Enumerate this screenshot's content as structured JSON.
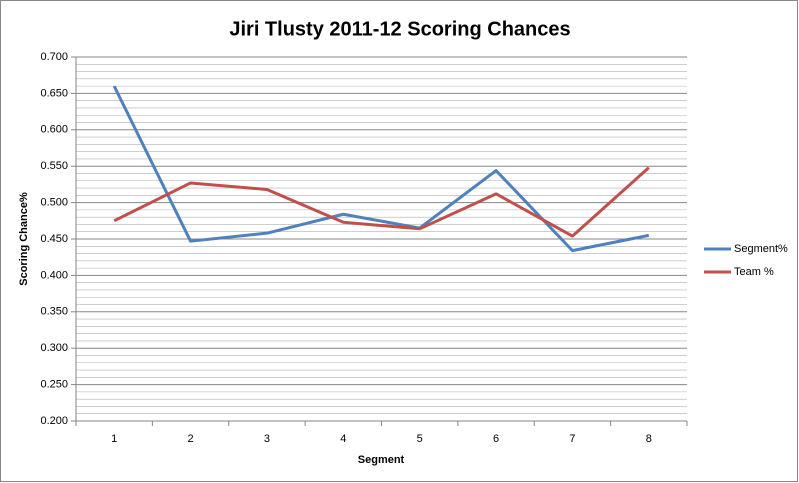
{
  "chart_data": {
    "type": "line",
    "title": "Jiri Tlusty 2011-12 Scoring Chances",
    "x_label": "Segment",
    "y_label": "Scoring  Chance%",
    "categories": [
      "1",
      "2",
      "3",
      "4",
      "5",
      "6",
      "7",
      "8"
    ],
    "series": [
      {
        "name": "Segment%",
        "color": "#4f81bd",
        "values": [
          0.66,
          0.447,
          0.458,
          0.484,
          0.465,
          0.544,
          0.434,
          0.455
        ]
      },
      {
        "name": "Team %",
        "color": "#c0504d",
        "values": [
          0.475,
          0.527,
          0.518,
          0.473,
          0.464,
          0.512,
          0.454,
          0.548
        ]
      }
    ],
    "ylim": [
      0.2,
      0.7
    ],
    "yticks": [
      {
        "value": 0.2,
        "label": "0.200"
      },
      {
        "value": 0.25,
        "label": "0.250"
      },
      {
        "value": 0.3,
        "label": "0.300"
      },
      {
        "value": 0.35,
        "label": "0.350"
      },
      {
        "value": 0.4,
        "label": "0.400"
      },
      {
        "value": 0.45,
        "label": "0.450"
      },
      {
        "value": 0.5,
        "label": "0.500"
      },
      {
        "value": 0.55,
        "label": "0.550"
      },
      {
        "value": 0.6,
        "label": "0.600"
      },
      {
        "value": 0.65,
        "label": "0.650"
      },
      {
        "value": 0.7,
        "label": "0.700"
      }
    ],
    "grid": true,
    "minor_grid": true,
    "legend": "right"
  }
}
